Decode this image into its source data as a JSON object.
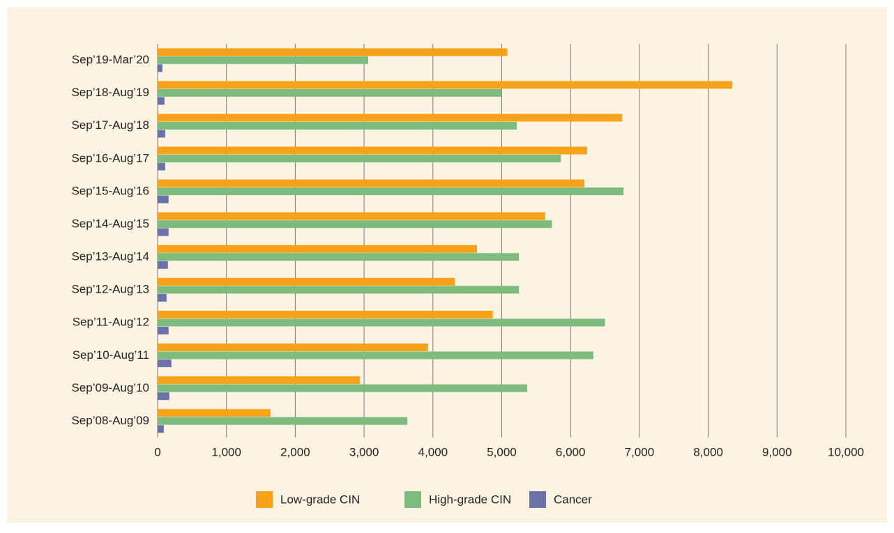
{
  "chart_data": {
    "type": "barh",
    "categories": [
      "Sep’19-Mar’20",
      "Sep’18-Aug’19",
      "Sep’17-Aug’18",
      "Sep’16-Aug’17",
      "Sep’15-Aug’16",
      "Sep’14-Aug’15",
      "Sep’13-Aug’14",
      "Sep’12-Aug’13",
      "Sep’11-Aug’12",
      "Sep’10-Aug’11",
      "Sep’09-Aug’10",
      "Sep’08-Aug’09"
    ],
    "series": [
      {
        "name": "Low-grade CIN",
        "color": "#f7a21b",
        "values": [
          5080,
          8350,
          6750,
          6240,
          6200,
          5630,
          4640,
          4320,
          4870,
          3930,
          2940,
          1640
        ]
      },
      {
        "name": "High-grade CIN",
        "color": "#7dbb7e",
        "values": [
          3060,
          5000,
          5220,
          5860,
          6770,
          5730,
          5250,
          5250,
          6500,
          6330,
          5370,
          3630
        ]
      },
      {
        "name": "Cancer",
        "color": "#6b72a8",
        "values": [
          70,
          100,
          110,
          110,
          160,
          160,
          150,
          130,
          160,
          200,
          170,
          90
        ]
      }
    ],
    "xlim": [
      0,
      10000
    ],
    "xticks": [
      0,
      {
        "value": 1000,
        "label": "1,000"
      },
      {
        "value": 2000,
        "label": "2,000"
      },
      {
        "value": 3000,
        "label": "3,000"
      },
      {
        "value": 4000,
        "label": "4,000"
      },
      {
        "value": 5000,
        "label": "5,000"
      },
      {
        "value": 6000,
        "label": "6,000"
      },
      {
        "value": 7000,
        "label": "7,000"
      },
      {
        "value": 8000,
        "label": "8,000"
      },
      {
        "value": 9000,
        "label": "9,000"
      },
      {
        "value": 10000,
        "label": "10,000"
      }
    ],
    "grid": true,
    "legend": "bottom"
  }
}
